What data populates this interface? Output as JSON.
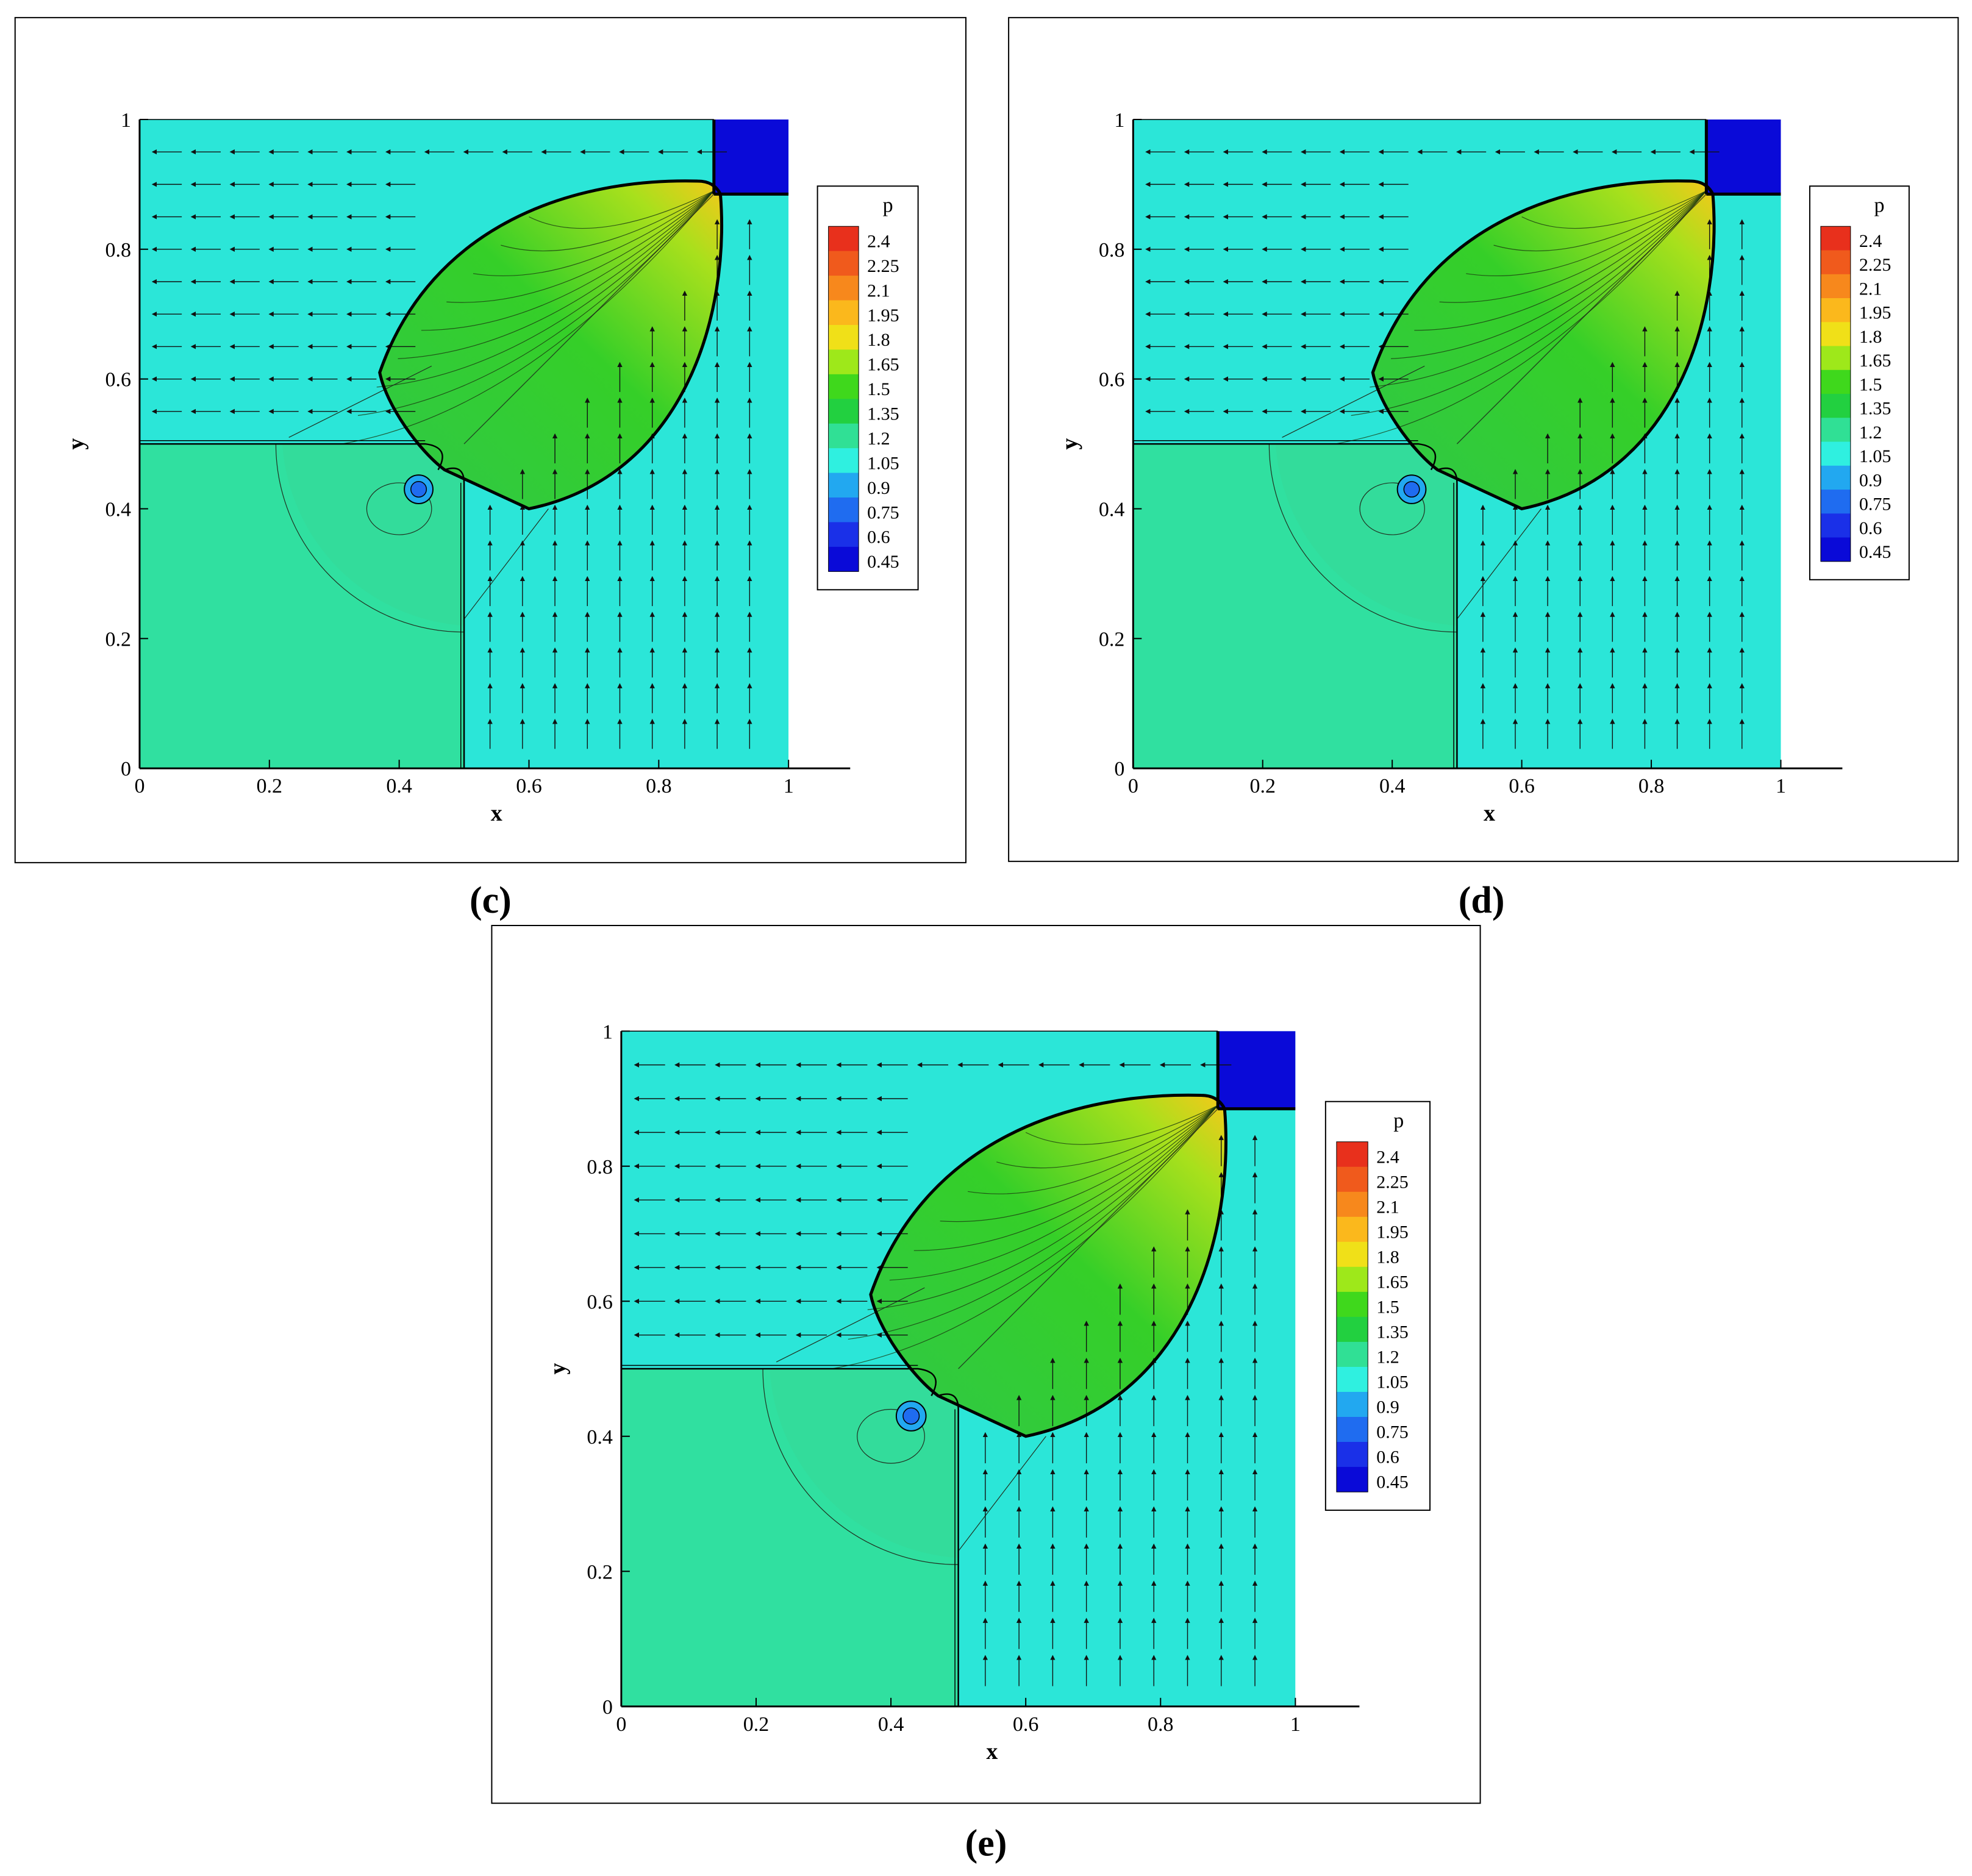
{
  "figure": {
    "panels": [
      {
        "caption": "(c)",
        "xlabel": "x",
        "ylabel": "y",
        "legend_title": "p",
        "xticks": [
          "0",
          "0.2",
          "0.4",
          "0.6",
          "0.8",
          "1"
        ],
        "yticks": [
          "0",
          "0.2",
          "0.4",
          "0.6",
          "0.8",
          "1"
        ],
        "legend_levels": [
          "2.4",
          "2.25",
          "2.1",
          "1.95",
          "1.8",
          "1.65",
          "1.5",
          "1.35",
          "1.2",
          "1.05",
          "0.9",
          "0.75",
          "0.6",
          "0.45"
        ]
      },
      {
        "caption": "(d)",
        "xlabel": "x",
        "ylabel": "y",
        "legend_title": "p",
        "xticks": [
          "0",
          "0.2",
          "0.4",
          "0.6",
          "0.8",
          "1"
        ],
        "yticks": [
          "0",
          "0.2",
          "0.4",
          "0.6",
          "0.8",
          "1"
        ],
        "legend_levels": [
          "2.4",
          "2.25",
          "2.1",
          "1.95",
          "1.8",
          "1.65",
          "1.5",
          "1.35",
          "1.2",
          "1.05",
          "0.9",
          "0.75",
          "0.6",
          "0.45"
        ]
      },
      {
        "caption": "(e)",
        "xlabel": "x",
        "ylabel": "y",
        "legend_title": "p",
        "xticks": [
          "0",
          "0.2",
          "0.4",
          "0.6",
          "0.8",
          "1"
        ],
        "yticks": [
          "0",
          "0.2",
          "0.4",
          "0.6",
          "0.8",
          "1"
        ],
        "legend_levels": [
          "2.4",
          "2.25",
          "2.1",
          "1.95",
          "1.8",
          "1.65",
          "1.5",
          "1.35",
          "1.2",
          "1.05",
          "0.9",
          "0.75",
          "0.6",
          "0.45"
        ]
      }
    ]
  },
  "chart_data": [
    {
      "type": "heatmap",
      "panel": "(c)",
      "variable": "p",
      "xlabel": "x",
      "ylabel": "y",
      "xlim": [
        0,
        1
      ],
      "ylim": [
        0,
        1
      ],
      "legend_position": "right",
      "colorbar_levels": [
        2.4,
        2.25,
        2.1,
        1.95,
        1.8,
        1.65,
        1.5,
        1.35,
        1.2,
        1.05,
        0.9,
        0.75,
        0.6,
        0.45
      ],
      "colorbar_colors": [
        "#e8301c",
        "#f05a1c",
        "#f7881c",
        "#fbb81c",
        "#f0e018",
        "#9ee81a",
        "#3fd81c",
        "#22d040",
        "#30e095",
        "#2ff0e0",
        "#22a8f0",
        "#1f6cf0",
        "#1a30e8",
        "#0a0ad8"
      ],
      "regions": [
        {
          "name": "ambient",
          "level": 1.05,
          "color": "#2be6d8"
        },
        {
          "name": "lower-left quadrant",
          "level": 1.2,
          "color": "#30e0a0"
        },
        {
          "name": "lens region",
          "level": 1.5,
          "color": "#35cf28"
        },
        {
          "name": "top-right corner",
          "level": 0.45,
          "color": "#0a0ad8"
        },
        {
          "name": "lens tip peak",
          "level": 2.1,
          "color": "#f6c81a"
        }
      ]
    },
    {
      "type": "heatmap",
      "panel": "(d)",
      "variable": "p",
      "xlabel": "x",
      "ylabel": "y",
      "xlim": [
        0,
        1
      ],
      "ylim": [
        0,
        1
      ],
      "legend_position": "right",
      "colorbar_levels": [
        2.4,
        2.25,
        2.1,
        1.95,
        1.8,
        1.65,
        1.5,
        1.35,
        1.2,
        1.05,
        0.9,
        0.75,
        0.6,
        0.45
      ],
      "colorbar_colors": [
        "#e8301c",
        "#f05a1c",
        "#f7881c",
        "#fbb81c",
        "#f0e018",
        "#9ee81a",
        "#3fd81c",
        "#22d040",
        "#30e095",
        "#2ff0e0",
        "#22a8f0",
        "#1f6cf0",
        "#1a30e8",
        "#0a0ad8"
      ],
      "regions": [
        {
          "name": "ambient",
          "level": 1.05,
          "color": "#2be6d8"
        },
        {
          "name": "lower-left quadrant",
          "level": 1.2,
          "color": "#30e0a0"
        },
        {
          "name": "lens region",
          "level": 1.5,
          "color": "#35cf28"
        },
        {
          "name": "top-right corner",
          "level": 0.45,
          "color": "#0a0ad8"
        },
        {
          "name": "lens tip peak",
          "level": 2.1,
          "color": "#f6c81a"
        }
      ]
    },
    {
      "type": "heatmap",
      "panel": "(e)",
      "variable": "p",
      "xlabel": "x",
      "ylabel": "y",
      "xlim": [
        0,
        1
      ],
      "ylim": [
        0,
        1
      ],
      "legend_position": "right",
      "colorbar_levels": [
        2.4,
        2.25,
        2.1,
        1.95,
        1.8,
        1.65,
        1.5,
        1.35,
        1.2,
        1.05,
        0.9,
        0.75,
        0.6,
        0.45
      ],
      "colorbar_colors": [
        "#e8301c",
        "#f05a1c",
        "#f7881c",
        "#fbb81c",
        "#f0e018",
        "#9ee81a",
        "#3fd81c",
        "#22d040",
        "#30e095",
        "#2ff0e0",
        "#22a8f0",
        "#1f6cf0",
        "#1a30e8",
        "#0a0ad8"
      ],
      "regions": [
        {
          "name": "ambient",
          "level": 1.05,
          "color": "#2be6d8"
        },
        {
          "name": "lower-left quadrant",
          "level": 1.2,
          "color": "#30e0a0"
        },
        {
          "name": "lens region",
          "level": 1.5,
          "color": "#35cf28"
        },
        {
          "name": "top-right corner",
          "level": 0.45,
          "color": "#0a0ad8"
        },
        {
          "name": "lens tip peak",
          "level": 2.1,
          "color": "#f6c81a"
        }
      ]
    }
  ]
}
